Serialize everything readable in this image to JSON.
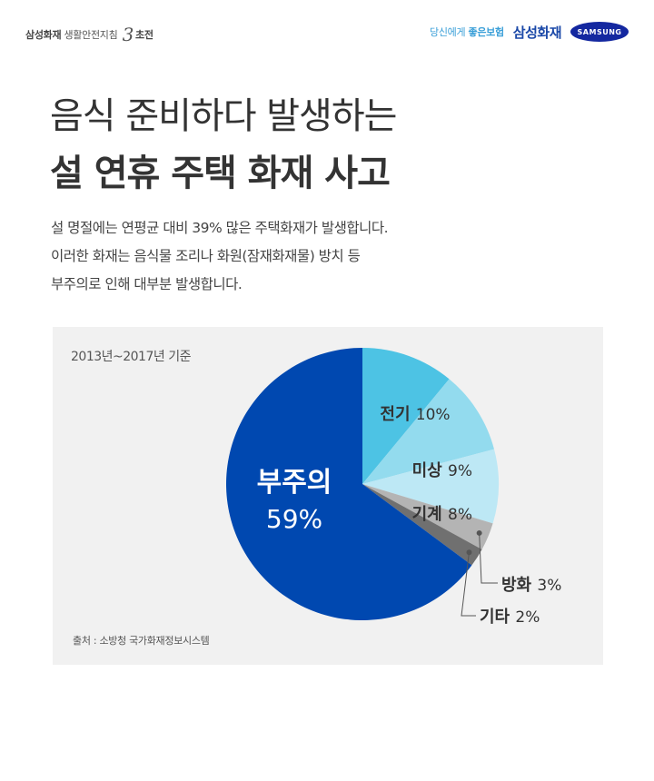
{
  "header": {
    "brand_left_bold": "삼성화재",
    "brand_left_text": "생활안전지침",
    "brand_left_number": "3",
    "brand_left_suffix": "초전",
    "tagline_plain": "당신에게",
    "tagline_strong": "좋은보험",
    "brand_name": "삼성화재",
    "logo_text": "SAMSUNG"
  },
  "title": {
    "line1": "음식 준비하다 발생하는",
    "line2": "설 연휴 주택 화재 사고"
  },
  "description": [
    "설 명절에는 연평균 대비 39% 많은 주택화재가 발생합니다.",
    "이러한 화재는 음식물 조리나 화원(잠재화재물) 방치 등",
    "부주의로 인해 대부분 발생합니다."
  ],
  "panel": {
    "period": "2013년~2017년 기준",
    "source": "출처 : 소방청 국가화재정보시스템"
  },
  "chart_data": {
    "type": "pie",
    "title": "",
    "start_angle_deg": 0,
    "direction": "clockwise",
    "slices": [
      {
        "label": "전기",
        "value": 10,
        "display": "10%",
        "color": "#4dc3e4",
        "label_color": "#333333"
      },
      {
        "label": "미상",
        "value": 9,
        "display": "9%",
        "color": "#93dbee",
        "label_color": "#333333"
      },
      {
        "label": "기계",
        "value": 8,
        "display": "8%",
        "color": "#bde8f5",
        "label_color": "#333333"
      },
      {
        "label": "방화",
        "value": 3,
        "display": "3%",
        "color": "#b4b4b4",
        "label_color": "#333333"
      },
      {
        "label": "기타",
        "value": 2,
        "display": "2%",
        "color": "#707070",
        "label_color": "#333333"
      },
      {
        "label": "부주의",
        "value": 59,
        "display": "59%",
        "color": "#0048b0",
        "label_color": "#ffffff"
      }
    ]
  }
}
